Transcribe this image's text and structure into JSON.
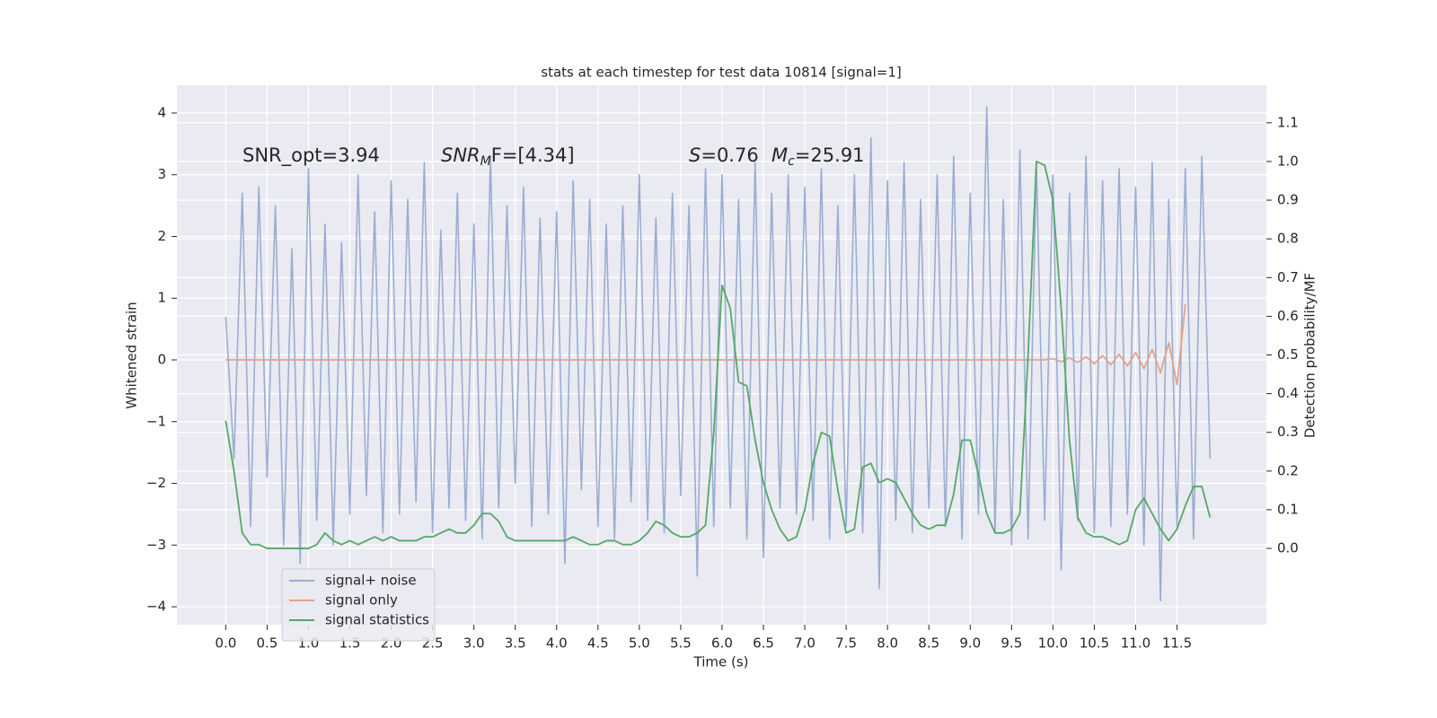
{
  "chart_data": {
    "type": "line",
    "title": "stats at each timestep for test data 10814 [signal=1]",
    "xlabel": "Time (s)",
    "ylabel": "Whitened strain",
    "y2label": "Detection probability/MF",
    "annotations": [
      [
        "SNR_opt=3.94"
      ],
      [
        "SNR",
        "M",
        "F=[4.34]"
      ],
      [
        "S",
        "=0.76"
      ],
      [
        "M",
        "c",
        "=25.91"
      ]
    ],
    "x": [
      0.0,
      0.1,
      0.2,
      0.3,
      0.4,
      0.5,
      0.6,
      0.7,
      0.8,
      0.9,
      1.0,
      1.1,
      1.2,
      1.3,
      1.4,
      1.5,
      1.6,
      1.7,
      1.8,
      1.9,
      2.0,
      2.1,
      2.2,
      2.3,
      2.4,
      2.5,
      2.6,
      2.7,
      2.8,
      2.9,
      3.0,
      3.1,
      3.2,
      3.3,
      3.4,
      3.5,
      3.6,
      3.7,
      3.8,
      3.9,
      4.0,
      4.1,
      4.2,
      4.3,
      4.4,
      4.5,
      4.6,
      4.7,
      4.8,
      4.9,
      5.0,
      5.1,
      5.2,
      5.3,
      5.4,
      5.5,
      5.6,
      5.7,
      5.8,
      5.9,
      6.0,
      6.1,
      6.2,
      6.3,
      6.4,
      6.5,
      6.6,
      6.7,
      6.8,
      6.9,
      7.0,
      7.1,
      7.2,
      7.3,
      7.4,
      7.5,
      7.6,
      7.7,
      7.8,
      7.9,
      8.0,
      8.1,
      8.2,
      8.3,
      8.4,
      8.5,
      8.6,
      8.7,
      8.8,
      8.9,
      9.0,
      9.1,
      9.2,
      9.3,
      9.4,
      9.5,
      9.6,
      9.7,
      9.8,
      9.9,
      10.0,
      10.1,
      10.2,
      10.3,
      10.4,
      10.5,
      10.6,
      10.7,
      10.8,
      10.9,
      11.0,
      11.1,
      11.2,
      11.3,
      11.4,
      11.5,
      11.6,
      11.7,
      11.8,
      11.9
    ],
    "series": [
      {
        "name": "signal+ noise",
        "color": "#9aadd1",
        "axis": "y",
        "values": [
          0.7,
          -1.6,
          2.7,
          -2.7,
          2.8,
          -1.9,
          2.5,
          -3.0,
          1.8,
          -3.3,
          3.1,
          -2.6,
          2.2,
          -3.0,
          1.9,
          -2.5,
          3.0,
          -2.2,
          2.4,
          -2.8,
          2.9,
          -2.5,
          2.6,
          -2.3,
          3.2,
          -2.8,
          2.1,
          -2.4,
          2.7,
          -2.6,
          2.2,
          -2.9,
          3.3,
          -2.4,
          2.5,
          -2.0,
          2.8,
          -2.7,
          2.3,
          -2.5,
          2.4,
          -3.3,
          2.9,
          -2.1,
          2.6,
          -2.7,
          2.2,
          -2.9,
          2.5,
          -2.3,
          3.0,
          -2.6,
          2.3,
          -2.8,
          2.7,
          -2.2,
          2.5,
          -3.5,
          3.1,
          -2.7,
          3.0,
          -2.4,
          2.6,
          -2.9,
          3.2,
          -3.2,
          2.7,
          -2.4,
          3.0,
          -2.5,
          2.8,
          -2.6,
          3.1,
          -2.9,
          2.5,
          -2.7,
          3.0,
          -2.8,
          3.6,
          -3.7,
          2.9,
          -2.6,
          3.2,
          -2.8,
          2.6,
          -2.4,
          3.0,
          -2.7,
          3.3,
          -2.9,
          2.7,
          -2.5,
          4.1,
          -2.8,
          2.6,
          -3.0,
          3.4,
          -2.9,
          3.2,
          -2.6,
          3.0,
          -3.4,
          2.7,
          -2.6,
          3.3,
          -2.8,
          2.9,
          -2.7,
          3.1,
          -2.5,
          2.8,
          -3.0,
          3.2,
          -3.9,
          2.6,
          -2.7,
          3.1,
          -2.9,
          3.3,
          -1.6
        ]
      },
      {
        "name": "signal only",
        "color": "#e2a48a",
        "axis": "y",
        "values": [
          0,
          0,
          0,
          0,
          0,
          0,
          0,
          0,
          0,
          0,
          0,
          0,
          0,
          0,
          0,
          0,
          0,
          0,
          0,
          0,
          0,
          0,
          0,
          0,
          0,
          0,
          0,
          0,
          0,
          0,
          0,
          0,
          0,
          0,
          0,
          0,
          0,
          0,
          0,
          0,
          0,
          0,
          0,
          0,
          0,
          0,
          0,
          0,
          0,
          0,
          0,
          0,
          0,
          0,
          0,
          0,
          0,
          0,
          0,
          0,
          0,
          0,
          0,
          0,
          0,
          0,
          0,
          0,
          0,
          0,
          0,
          0,
          0,
          0,
          0,
          0,
          0,
          0,
          0,
          0,
          0,
          0,
          0,
          0,
          0,
          0,
          0,
          0,
          0,
          0,
          0,
          0,
          0,
          0,
          0,
          0,
          0,
          0,
          0,
          0,
          0.02,
          -0.03,
          0.03,
          -0.04,
          0.05,
          -0.06,
          0.07,
          -0.08,
          0.09,
          -0.1,
          0.12,
          -0.14,
          0.17,
          -0.21,
          0.28,
          -0.4,
          0.9,
          null,
          null,
          null
        ]
      },
      {
        "name": "signal statistics",
        "color": "#55a868",
        "axis": "y2",
        "values": [
          0.33,
          0.2,
          0.04,
          0.01,
          0.01,
          0.0,
          0.0,
          0.0,
          0.0,
          0.0,
          0.0,
          0.01,
          0.04,
          0.02,
          0.01,
          0.02,
          0.01,
          0.02,
          0.03,
          0.02,
          0.03,
          0.02,
          0.02,
          0.02,
          0.03,
          0.03,
          0.04,
          0.05,
          0.04,
          0.04,
          0.06,
          0.09,
          0.09,
          0.07,
          0.03,
          0.02,
          0.02,
          0.02,
          0.02,
          0.02,
          0.02,
          0.02,
          0.03,
          0.02,
          0.01,
          0.01,
          0.02,
          0.02,
          0.01,
          0.01,
          0.02,
          0.04,
          0.07,
          0.06,
          0.04,
          0.03,
          0.03,
          0.04,
          0.06,
          0.3,
          0.68,
          0.62,
          0.43,
          0.42,
          0.28,
          0.17,
          0.1,
          0.05,
          0.02,
          0.03,
          0.1,
          0.22,
          0.3,
          0.29,
          0.15,
          0.04,
          0.05,
          0.21,
          0.22,
          0.17,
          0.18,
          0.17,
          0.13,
          0.09,
          0.06,
          0.05,
          0.06,
          0.06,
          0.14,
          0.28,
          0.28,
          0.19,
          0.09,
          0.04,
          0.04,
          0.05,
          0.09,
          0.5,
          1.0,
          0.99,
          0.9,
          0.62,
          0.28,
          0.08,
          0.04,
          0.03,
          0.03,
          0.02,
          0.01,
          0.02,
          0.1,
          0.13,
          0.09,
          0.05,
          0.02,
          0.05,
          0.11,
          0.16,
          0.16,
          0.08
        ]
      }
    ],
    "xlim": [
      -0.59,
      12.58
    ],
    "xticks": [
      {
        "value": 0,
        "label": "0.0"
      },
      0.5,
      {
        "value": 1,
        "label": "1.0"
      },
      1.5,
      {
        "value": 2,
        "label": "2.0"
      },
      2.5,
      {
        "value": 3,
        "label": "3.0"
      },
      3.5,
      {
        "value": 4,
        "label": "4.0"
      },
      4.5,
      {
        "value": 5,
        "label": "5.0"
      },
      5.5,
      {
        "value": 6,
        "label": "6.0"
      },
      6.5,
      {
        "value": 7,
        "label": "7.0"
      },
      7.5,
      {
        "value": 8,
        "label": "8.0"
      },
      8.5,
      {
        "value": 9,
        "label": "9.0"
      },
      9.5,
      {
        "value": 10,
        "label": "10.0"
      },
      10.5,
      {
        "value": 11,
        "label": "11.0"
      },
      11.5
    ],
    "ylim": [
      -4.29,
      4.45
    ],
    "yticks": [
      {
        "value": -4,
        "label": "−4"
      },
      {
        "value": -3,
        "label": "−3"
      },
      {
        "value": -2,
        "label": "−2"
      },
      {
        "value": -1,
        "label": "−1"
      },
      0,
      1,
      2,
      3,
      4
    ],
    "y2lim": [
      -0.197,
      1.197
    ],
    "y2ticks": [
      {
        "value": 0,
        "label": "0.0"
      },
      0.1,
      0.2,
      0.3,
      0.4,
      0.5,
      0.6,
      0.7,
      0.8,
      0.9,
      {
        "value": 1,
        "label": "1.0"
      },
      1.1
    ],
    "grid": true,
    "legend": "lower left"
  }
}
